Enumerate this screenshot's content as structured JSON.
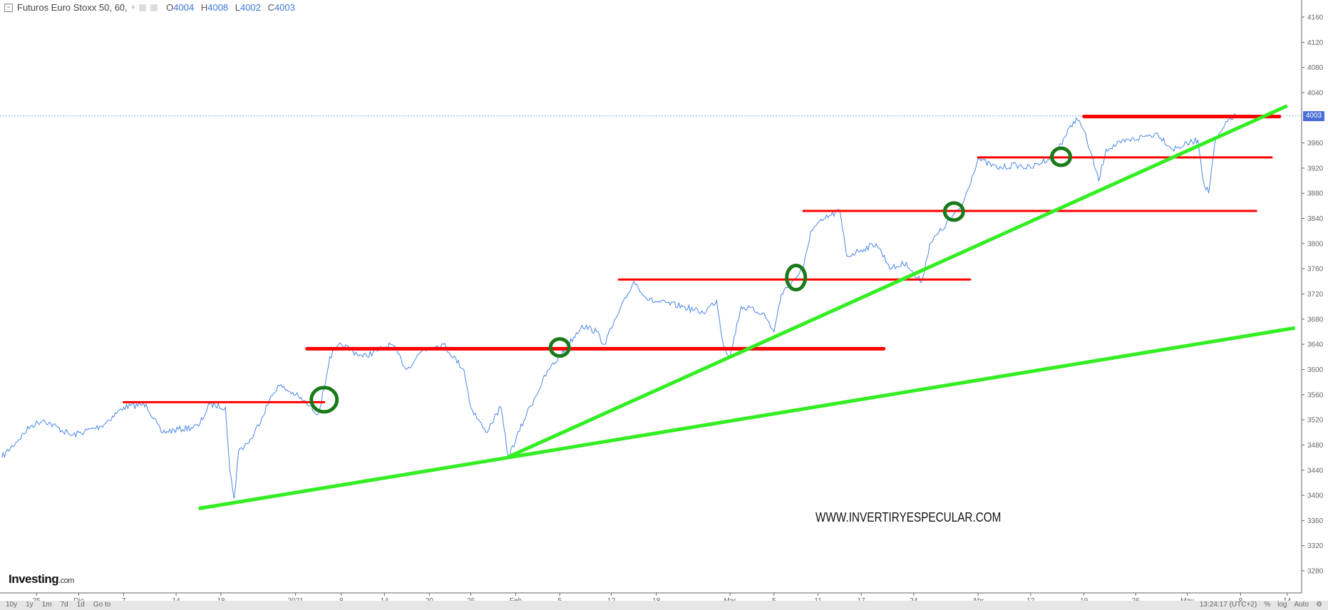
{
  "header": {
    "title": "Futuros Euro Stoxx 50, 60,",
    "ohlc": [
      {
        "key": "O",
        "value": "4004"
      },
      {
        "key": "H",
        "value": "4008"
      },
      {
        "key": "L",
        "value": "4002"
      },
      {
        "key": "C",
        "value": "4003"
      }
    ]
  },
  "chart_data": {
    "type": "line",
    "title": "Futuros Euro Stoxx 50, 60,",
    "last_price": "4003",
    "y_ticks": [
      "4160",
      "4120",
      "4080",
      "4040",
      "3960",
      "3920",
      "3880",
      "3840",
      "3800",
      "3760",
      "3720",
      "3680",
      "3640",
      "3600",
      "3560",
      "3520",
      "3480",
      "3440",
      "3400",
      "3360",
      "3320",
      "3280"
    ],
    "ylim": [
      3260,
      4187
    ],
    "x_ticks": [
      "25",
      "Dic",
      "7",
      "14",
      "18",
      "2021",
      "8",
      "14",
      "20",
      "26",
      "Feb",
      "5",
      "12",
      "18",
      "Mar",
      "5",
      "11",
      "17",
      "24",
      "Abr",
      "12",
      "19",
      "26",
      "May",
      "8",
      "14"
    ],
    "series": [
      {
        "color": "#3c78d8",
        "points": [
          [
            "2020-11-19",
            3460
          ],
          [
            "2020-11-24",
            3510
          ],
          [
            "2020-11-26",
            3520
          ],
          [
            "2020-11-30",
            3495
          ],
          [
            "2020-12-04",
            3510
          ],
          [
            "2020-12-07",
            3540
          ],
          [
            "2020-12-10",
            3545
          ],
          [
            "2020-12-12",
            3500
          ],
          [
            "2020-12-16",
            3510
          ],
          [
            "2020-12-17",
            3545
          ],
          [
            "2020-12-19",
            3540
          ],
          [
            "2020-12-20",
            3440
          ],
          [
            "2020-12-21",
            3395
          ],
          [
            "2020-12-22",
            3470
          ],
          [
            "2020-12-25",
            3490
          ],
          [
            "2020-12-29",
            3550
          ],
          [
            "2020-12-31",
            3575
          ],
          [
            "2021-01-04",
            3560
          ],
          [
            "2021-01-05",
            3545
          ],
          [
            "2021-01-06",
            3530
          ],
          [
            "2021-01-06T12:00",
            3570
          ],
          [
            "2021-01-07",
            3620
          ],
          [
            "2021-01-08",
            3640
          ],
          [
            "2021-01-11",
            3620
          ],
          [
            "2021-01-15",
            3640
          ],
          [
            "2021-01-17",
            3600
          ],
          [
            "2021-01-19",
            3630
          ],
          [
            "2021-01-22",
            3640
          ],
          [
            "2021-01-25",
            3600
          ],
          [
            "2021-01-26",
            3540
          ],
          [
            "2021-01-28",
            3500
          ],
          [
            "2021-01-30",
            3540
          ],
          [
            "2021-01-31",
            3460
          ],
          [
            "2021-02-02",
            3530
          ],
          [
            "2021-02-04",
            3600
          ],
          [
            "2021-02-05",
            3620
          ],
          [
            "2021-02-08",
            3670
          ],
          [
            "2021-02-10",
            3660
          ],
          [
            "2021-02-11",
            3640
          ],
          [
            "2021-02-13",
            3690
          ],
          [
            "2021-02-15",
            3740
          ],
          [
            "2021-02-17",
            3710
          ],
          [
            "2021-02-22",
            3700
          ],
          [
            "2021-02-25",
            3690
          ],
          [
            "2021-02-27",
            3710
          ],
          [
            "2021-02-28",
            3640
          ],
          [
            "2021-03-01",
            3620
          ],
          [
            "2021-03-02",
            3700
          ],
          [
            "2021-03-04",
            3690
          ],
          [
            "2021-03-05",
            3660
          ],
          [
            "2021-03-06",
            3720
          ],
          [
            "2021-03-09",
            3760
          ],
          [
            "2021-03-10",
            3820
          ],
          [
            "2021-03-12",
            3840
          ],
          [
            "2021-03-14",
            3852
          ],
          [
            "2021-03-15",
            3780
          ],
          [
            "2021-03-17",
            3790
          ],
          [
            "2021-03-19",
            3800
          ],
          [
            "2021-03-21",
            3760
          ],
          [
            "2021-03-23",
            3770
          ],
          [
            "2021-03-24",
            3750
          ],
          [
            "2021-03-25",
            3740
          ],
          [
            "2021-03-26",
            3800
          ],
          [
            "2021-03-28",
            3830
          ],
          [
            "2021-03-30",
            3860
          ],
          [
            "2021-04-01",
            3935
          ],
          [
            "2021-04-05",
            3920
          ],
          [
            "2021-04-09",
            3925
          ],
          [
            "2021-04-12",
            3920
          ],
          [
            "2021-04-15",
            3940
          ],
          [
            "2021-04-18",
            4000
          ],
          [
            "2021-04-19",
            3980
          ],
          [
            "2021-04-21",
            3900
          ],
          [
            "2021-04-22",
            3950
          ],
          [
            "2021-04-24",
            3960
          ],
          [
            "2021-04-27",
            3970
          ],
          [
            "2021-04-29",
            3975
          ],
          [
            "2021-05-01",
            3950
          ],
          [
            "2021-05-04",
            3965
          ],
          [
            "2021-05-04T12:00",
            3900
          ],
          [
            "2021-05-05",
            3880
          ],
          [
            "2021-05-05T14:00",
            3960
          ],
          [
            "2021-05-07",
            4000
          ],
          [
            "2021-05-07T20:00",
            4003
          ]
        ]
      }
    ],
    "annotations": {
      "support_lines_red": [
        {
          "from": "2020-12-07",
          "to": "2021-01-06T12:00",
          "price": 3548
        },
        {
          "from": "2021-01-05",
          "to": "2021-03-20",
          "price": 3633
        },
        {
          "from": "2021-02-13",
          "to": "2021-03-31",
          "price": 3743
        },
        {
          "from": "2021-03-09",
          "to": "2021-05-10",
          "price": 3852
        },
        {
          "from": "2021-04-01",
          "to": "2021-05-12",
          "price": 3937
        },
        {
          "from": "2021-04-19",
          "to": "2021-05-13",
          "price": 4002
        }
      ],
      "trend_lines_green": [
        {
          "from": [
            "2020-12-16",
            3379
          ],
          "to": [
            "2021-05-15",
            3666
          ]
        },
        {
          "from": [
            "2021-01-31",
            3461
          ],
          "to": [
            "2021-05-14",
            4019
          ]
        }
      ],
      "circles_green": [
        [
          "2021-01-06T12:00",
          3552
        ],
        [
          "2021-02-05",
          3635
        ],
        [
          "2021-03-08",
          3746
        ],
        [
          "2021-03-29",
          3851
        ],
        [
          "2021-04-16",
          3938
        ]
      ]
    }
  },
  "watermark": "WWW.INVERTIRYESPECULAR.COM",
  "logo": {
    "brand": "Investing",
    "suffix": ".com"
  },
  "bottom_bar": {
    "ranges": [
      "10y",
      "1y",
      "1m",
      "7d",
      "1d",
      "Go to"
    ],
    "time": "13:24:17 (UTC+2)",
    "options": [
      "%",
      "log",
      "Auto"
    ]
  }
}
